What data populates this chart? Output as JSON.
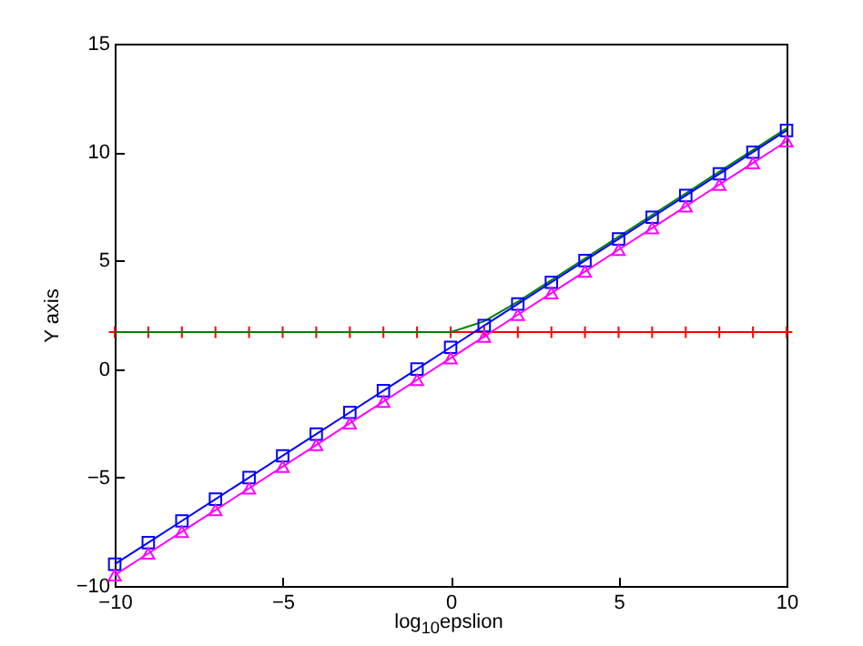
{
  "chart_data": {
    "type": "line",
    "xlabel": "log$_{10}$epslion",
    "ylabel": "Y axis",
    "x": [
      -10,
      -9,
      -8,
      -7,
      -6,
      -5,
      -4,
      -3,
      -2,
      -1,
      0,
      1,
      2,
      3,
      4,
      5,
      6,
      7,
      8,
      9,
      10
    ],
    "series": [
      {
        "color": "#ff0000",
        "marker": "cross",
        "values": [
          1.7,
          1.7,
          1.7,
          1.7,
          1.7,
          1.7,
          1.7,
          1.7,
          1.7,
          1.7,
          1.7,
          1.7,
          1.7,
          1.7,
          1.7,
          1.7,
          1.7,
          1.7,
          1.7,
          1.7,
          1.7
        ]
      },
      {
        "color": "#008000",
        "marker": "none",
        "values": [
          1.7,
          1.7,
          1.7,
          1.7,
          1.7,
          1.7,
          1.7,
          1.7,
          1.7,
          1.7,
          1.7,
          2.2,
          3.1,
          4.1,
          5.1,
          6.1,
          7.1,
          8.1,
          9.1,
          10.1,
          11.1
        ]
      },
      {
        "color": "#0000ff",
        "marker": "square",
        "values": [
          -9,
          -8,
          -7,
          -6,
          -5,
          -4,
          -3,
          -2,
          -1,
          0,
          1,
          2,
          3,
          4,
          5,
          6,
          7,
          8,
          9,
          10,
          11
        ]
      },
      {
        "color": "#ff00ff",
        "marker": "triangle",
        "values": [
          -9.5,
          -8.5,
          -7.5,
          -6.5,
          -5.5,
          -4.5,
          -3.5,
          -2.5,
          -1.5,
          -0.5,
          0.5,
          1.5,
          2.5,
          3.5,
          4.5,
          5.5,
          6.5,
          7.5,
          8.5,
          9.5,
          10.5
        ]
      }
    ],
    "xlim": [
      -10,
      10
    ],
    "xticks": [
      -10,
      -5,
      0,
      5,
      10
    ],
    "ylim": [
      -10,
      15
    ],
    "yticks": [
      -10,
      -5,
      0,
      5,
      10,
      15
    ],
    "grid": false
  }
}
